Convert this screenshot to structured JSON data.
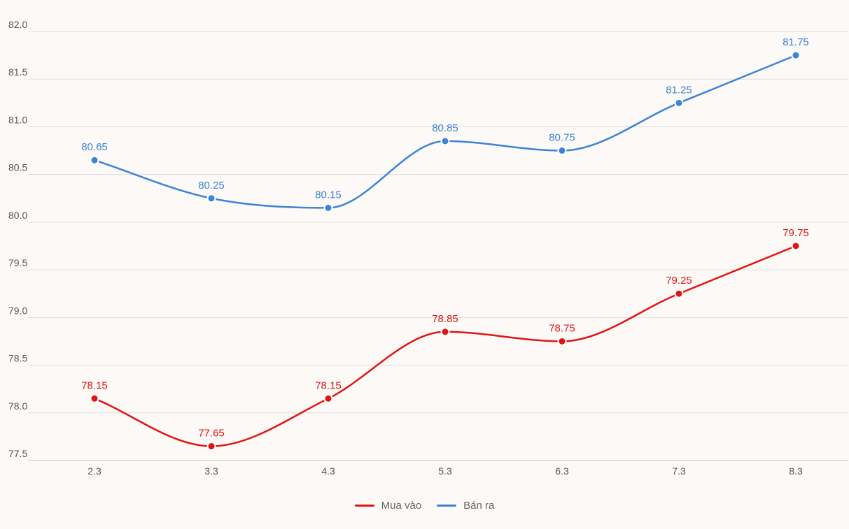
{
  "chart_data": {
    "type": "line",
    "categories": [
      "2.3",
      "3.3",
      "4.3",
      "5.3",
      "6.3",
      "7.3",
      "8.3"
    ],
    "y_ticks": [
      "77.5",
      "78.0",
      "78.5",
      "79.0",
      "79.5",
      "80.0",
      "80.5",
      "81.0",
      "81.5",
      "82.0"
    ],
    "ylim": [
      77.5,
      82.0
    ],
    "grid": true,
    "legend_position": "bottom-center",
    "series": [
      {
        "name": "Mua vào",
        "color": "#e01414",
        "values": [
          78.15,
          77.65,
          78.15,
          78.85,
          78.75,
          79.25,
          79.75
        ],
        "labels": [
          "78.15",
          "77.65",
          "78.15",
          "78.85",
          "78.75",
          "79.25",
          "79.75"
        ]
      },
      {
        "name": "Bán ra",
        "color": "#3b84d8",
        "values": [
          80.65,
          80.25,
          80.15,
          80.85,
          80.75,
          81.25,
          81.75
        ],
        "labels": [
          "80.65",
          "80.25",
          "80.15",
          "80.85",
          "80.75",
          "81.25",
          "81.75"
        ]
      }
    ]
  }
}
